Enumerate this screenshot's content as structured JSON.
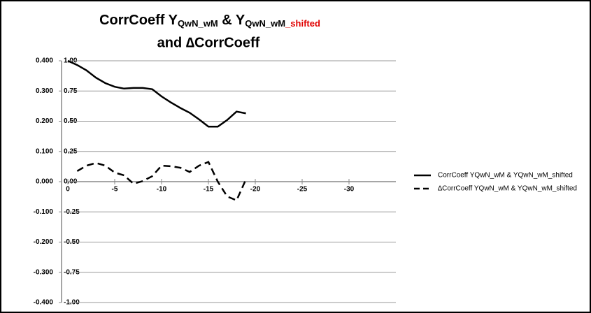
{
  "chart_data": {
    "type": "line",
    "title": [
      "CorrCoeff Y",
      "QwN_wM",
      " & Y",
      "QwN_wM",
      "_shifted"
    ],
    "title_line2": "and ∆CorrCoeff",
    "x": [
      0,
      -1,
      -2,
      -3,
      -4,
      -5,
      -6,
      -7,
      -8,
      -9,
      -10,
      -11,
      -12,
      -13,
      -14,
      -15,
      -16,
      -17,
      -18,
      -19
    ],
    "series": [
      {
        "name": "CorrCoeff YQwN_wM & YQwN_wM_shifted",
        "color": "#000000",
        "line_style": "solid",
        "axis": "y",
        "values": [
          1.0,
          0.965,
          0.92,
          0.86,
          0.815,
          0.785,
          0.77,
          0.775,
          0.775,
          0.765,
          0.705,
          0.655,
          0.61,
          0.57,
          0.515,
          0.455,
          0.455,
          0.51,
          0.58,
          0.565
        ]
      },
      {
        "name": "∆CorrCoeff YQwN_wM & YQwN_wM_shifted",
        "color": "#000000",
        "line_style": "dashed",
        "axis": "y2",
        "values": [
          null,
          0.035,
          0.053,
          0.062,
          0.053,
          0.03,
          0.021,
          -0.007,
          0.002,
          0.018,
          0.053,
          0.051,
          0.046,
          0.032,
          0.053,
          0.065,
          0.0,
          -0.049,
          -0.062,
          0.007
        ]
      }
    ],
    "xlim": [
      0,
      -35
    ],
    "xticks": [
      0,
      -5,
      -10,
      -15,
      -20,
      -25,
      -30
    ],
    "ylim": [
      -1,
      1
    ],
    "yticks": [
      {
        "value": 1,
        "label": "1.00"
      },
      {
        "value": 0.75,
        "label": "0.75"
      },
      {
        "value": 0.5,
        "label": "0.50"
      },
      {
        "value": 0.25,
        "label": "0.25"
      },
      {
        "value": 0,
        "label": "0.00"
      },
      {
        "value": -0.25,
        "label": "-0.25"
      },
      {
        "value": -0.5,
        "label": "-0.50"
      },
      {
        "value": -0.75,
        "label": "-0.75"
      },
      {
        "value": -1,
        "label": "-1.00"
      }
    ],
    "y2lim": [
      -0.4,
      0.4
    ],
    "y2ticks": [
      {
        "value": 0.4,
        "label": "0.400"
      },
      {
        "value": 0.3,
        "label": "0.300"
      },
      {
        "value": 0.2,
        "label": "0.200"
      },
      {
        "value": 0.1,
        "label": "0.100"
      },
      {
        "value": 0,
        "label": "0.000"
      },
      {
        "value": -0.1,
        "label": "-0.100"
      },
      {
        "value": -0.2,
        "label": "-0.200"
      },
      {
        "value": -0.3,
        "label": "-0.300"
      },
      {
        "value": -0.4,
        "label": "-0.400"
      }
    ],
    "grid": true,
    "legend": "right"
  }
}
